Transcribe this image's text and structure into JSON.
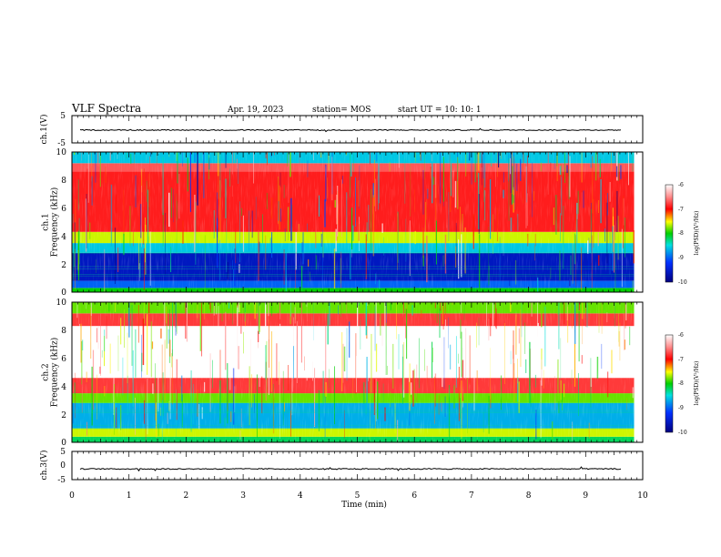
{
  "header": {
    "title": "VLF Spectra",
    "date": "Apr. 19, 2023",
    "station": "station= MOS",
    "start": "start  UT =   10: 10: 1"
  },
  "chart_data": {
    "type": "heatmap",
    "x_axis": {
      "label": "Time  (min)",
      "range": [
        0,
        10
      ],
      "ticks": [
        0,
        1,
        2,
        3,
        4,
        5,
        6,
        7,
        8,
        9,
        10
      ],
      "data_end": 9.85
    },
    "panels": [
      {
        "id": "ch1-waveform",
        "type": "line",
        "ylabel": "ch.1(V)",
        "yrange": [
          -5,
          5
        ],
        "yticks": [
          "5",
          "-5"
        ],
        "baseline_value": -0.3
      },
      {
        "id": "ch1-spectrogram",
        "type": "heatmap",
        "ylabel": "ch.1\nFrequency (kHz)",
        "yrange": [
          0,
          10
        ],
        "yticks": [
          "0",
          "2",
          "4",
          "6",
          "8",
          "10"
        ],
        "bands": [
          {
            "from": 0.0,
            "to": 0.3,
            "level": -8.0
          },
          {
            "from": 0.3,
            "to": 0.8,
            "level": -9.0
          },
          {
            "from": 0.8,
            "to": 2.8,
            "level": -9.6
          },
          {
            "from": 2.8,
            "to": 3.5,
            "level": -8.6
          },
          {
            "from": 3.5,
            "to": 4.3,
            "level": -7.6
          },
          {
            "from": 4.3,
            "to": 8.6,
            "level": -6.9
          },
          {
            "from": 8.6,
            "to": 9.2,
            "level": -6.7
          },
          {
            "from": 9.2,
            "to": 10.0,
            "level": -8.6
          }
        ],
        "colorbar": {
          "label": "log(PSD)(V²/Hz)",
          "range": [
            -10,
            -6
          ],
          "ticks": [
            "-6",
            "-7",
            "-8",
            "-9",
            "-10"
          ]
        }
      },
      {
        "id": "ch2-spectrogram",
        "type": "heatmap",
        "ylabel": "ch.2\nFrequency (kHz)",
        "yrange": [
          0,
          10
        ],
        "yticks": [
          "0",
          "2",
          "4",
          "6",
          "8",
          "10"
        ],
        "bands": [
          {
            "from": 0.0,
            "to": 0.4,
            "level": -8.2
          },
          {
            "from": 0.4,
            "to": 1.0,
            "level": -7.6
          },
          {
            "from": 1.0,
            "to": 2.8,
            "level": -8.7
          },
          {
            "from": 2.8,
            "to": 3.5,
            "level": -7.8
          },
          {
            "from": 3.5,
            "to": 4.6,
            "level": -6.8
          },
          {
            "from": 4.6,
            "to": 8.3,
            "level": -6.0
          },
          {
            "from": 8.3,
            "to": 9.2,
            "level": -6.8
          },
          {
            "from": 9.2,
            "to": 10.0,
            "level": -7.8
          }
        ],
        "colorbar": {
          "label": "log(PSD)(V²/Hz)",
          "range": [
            -10,
            -6
          ],
          "ticks": [
            "-6",
            "-7",
            "-8",
            "-9",
            "-10"
          ]
        }
      },
      {
        "id": "ch3-waveform",
        "type": "line",
        "ylabel": "ch.3(V)",
        "yrange": [
          -5,
          5
        ],
        "yticks": [
          "5",
          "0",
          "-5"
        ],
        "baseline_value": -1.2
      }
    ],
    "colors": {
      "-10": "#000080",
      "-9": "#0040ff",
      "-8.5": "#00e0e0",
      "-8": "#00e000",
      "-7.5": "#ffff00",
      "-7": "#ff0000",
      "-6": "#ffffff"
    }
  }
}
